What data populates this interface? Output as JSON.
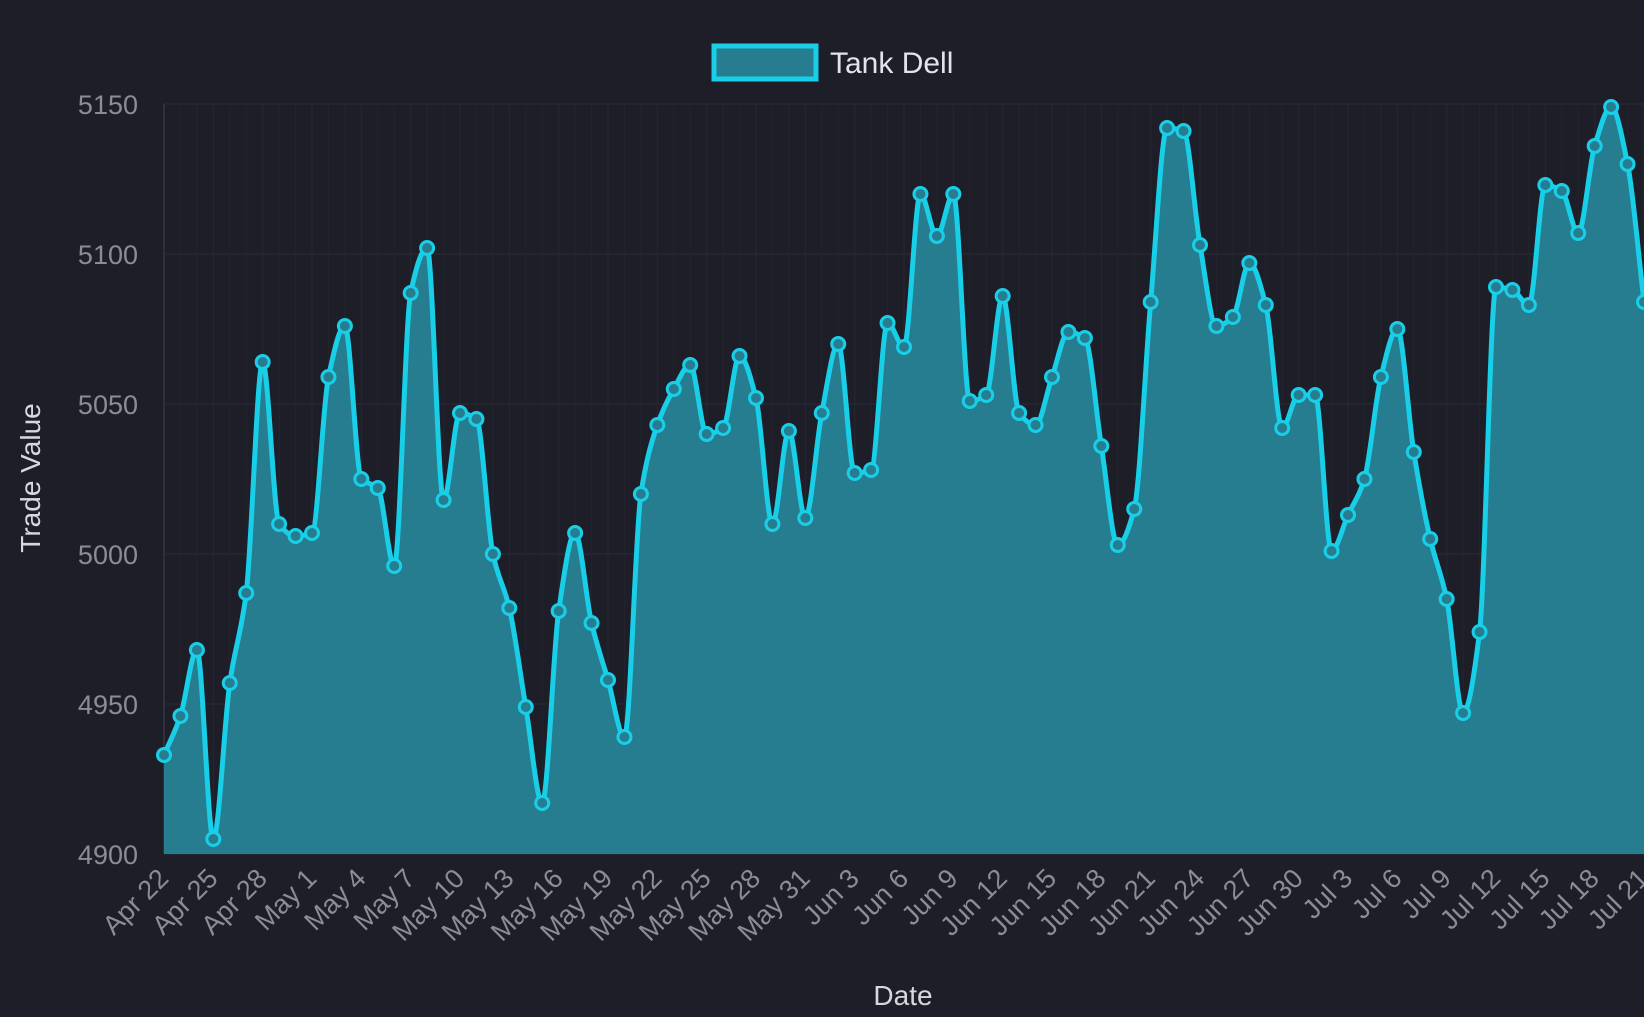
{
  "chart_data": {
    "type": "area",
    "xlabel": "Date",
    "ylabel": "Trade Value",
    "ylim": [
      4900,
      5150
    ],
    "yticks": [
      4900,
      4950,
      5000,
      5050,
      5100,
      5150
    ],
    "grid": true,
    "legend_position": "top",
    "xtick_labels": [
      "Apr 22",
      "Apr 25",
      "Apr 28",
      "May 1",
      "May 4",
      "May 7",
      "May 10",
      "May 13",
      "May 16",
      "May 19",
      "May 22",
      "May 25",
      "May 28",
      "May 31",
      "Jun 3",
      "Jun 6",
      "Jun 9",
      "Jun 12",
      "Jun 15",
      "Jun 18",
      "Jun 21",
      "Jun 24",
      "Jun 27",
      "Jun 30",
      "Jul 3",
      "Jul 6",
      "Jul 9",
      "Jul 12",
      "Jul 15",
      "Jul 18",
      "Jul 21"
    ],
    "series": [
      {
        "name": "Tank Dell",
        "color": "#19cfe8",
        "fill": "#267d90",
        "x": [
          "Apr 22",
          "Apr 23",
          "Apr 24",
          "Apr 25",
          "Apr 26",
          "Apr 27",
          "Apr 28",
          "Apr 29",
          "Apr 30",
          "May 1",
          "May 2",
          "May 3",
          "May 4",
          "May 5",
          "May 6",
          "May 7",
          "May 8",
          "May 9",
          "May 10",
          "May 11",
          "May 12",
          "May 13",
          "May 14",
          "May 15",
          "May 16",
          "May 17",
          "May 18",
          "May 19",
          "May 20",
          "May 21",
          "May 22",
          "May 23",
          "May 24",
          "May 25",
          "May 26",
          "May 27",
          "May 28",
          "May 29",
          "May 30",
          "May 31",
          "Jun 1",
          "Jun 2",
          "Jun 3",
          "Jun 4",
          "Jun 5",
          "Jun 6",
          "Jun 7",
          "Jun 8",
          "Jun 9",
          "Jun 10",
          "Jun 11",
          "Jun 12",
          "Jun 13",
          "Jun 14",
          "Jun 15",
          "Jun 16",
          "Jun 17",
          "Jun 18",
          "Jun 19",
          "Jun 20",
          "Jun 21",
          "Jun 22",
          "Jun 23",
          "Jun 24",
          "Jun 25",
          "Jun 26",
          "Jun 27",
          "Jun 28",
          "Jun 29",
          "Jun 30",
          "Jul 1",
          "Jul 2",
          "Jul 3",
          "Jul 4",
          "Jul 5",
          "Jul 6",
          "Jul 7",
          "Jul 8",
          "Jul 9",
          "Jul 10",
          "Jul 11",
          "Jul 12",
          "Jul 13",
          "Jul 14",
          "Jul 15",
          "Jul 16",
          "Jul 17",
          "Jul 18",
          "Jul 19",
          "Jul 20",
          "Jul 21"
        ],
        "values": [
          4933,
          4946,
          4968,
          4905,
          4957,
          4987,
          5064,
          5010,
          5006,
          5007,
          5059,
          5076,
          5025,
          5022,
          4996,
          5087,
          5102,
          5018,
          5047,
          5045,
          5000,
          4982,
          4949,
          4917,
          4981,
          5007,
          4977,
          4958,
          4939,
          5020,
          5043,
          5055,
          5063,
          5040,
          5042,
          5066,
          5052,
          5010,
          5041,
          5012,
          5047,
          5070,
          5027,
          5028,
          5077,
          5069,
          5120,
          5106,
          5120,
          5051,
          5053,
          5086,
          5047,
          5043,
          5059,
          5074,
          5072,
          5036,
          5003,
          5015,
          5084,
          5142,
          5141,
          5103,
          5076,
          5079,
          5097,
          5083,
          5042,
          5053,
          5053,
          5001,
          5013,
          5025,
          5059,
          5075,
          5034,
          5005,
          4985,
          4947,
          4974,
          5089,
          5088,
          5083,
          5123,
          5121,
          5107,
          5136,
          5149,
          5130,
          5084
        ]
      }
    ]
  }
}
